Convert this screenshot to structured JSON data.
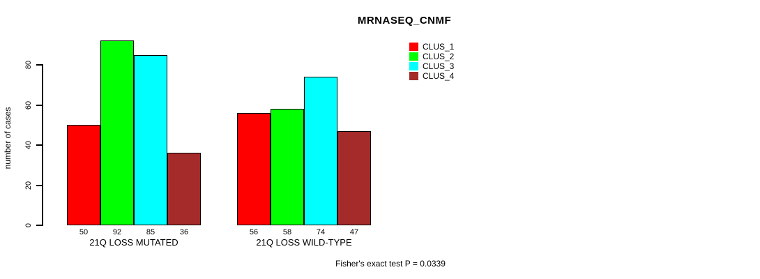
{
  "title": "MRNASEQ_CNMF",
  "chart_data": {
    "type": "bar",
    "title": "MRNASEQ_CNMF",
    "xlabel": "",
    "ylabel": "number of cases",
    "ylim": [
      0,
      92
    ],
    "yticks": [
      0,
      20,
      40,
      60,
      80
    ],
    "grid": false,
    "legend_position": "top-right",
    "categories": [
      "21Q LOSS MUTATED",
      "21Q LOSS WILD-TYPE"
    ],
    "series": [
      {
        "name": "CLUS_1",
        "color": "#ff0000",
        "values": [
          50,
          56
        ]
      },
      {
        "name": "CLUS_2",
        "color": "#00ff00",
        "values": [
          92,
          58
        ]
      },
      {
        "name": "CLUS_3",
        "color": "#00ffff",
        "values": [
          85,
          74
        ]
      },
      {
        "name": "CLUS_4",
        "color": "#a52a2a",
        "values": [
          36,
          47
        ]
      }
    ],
    "bar_value_labels": [
      [
        50,
        92,
        85,
        36
      ],
      [
        56,
        58,
        74,
        47
      ]
    ],
    "annotation": "Fisher's exact test P = 0.0339"
  },
  "legend": {
    "items": [
      {
        "label": "CLUS_1",
        "color": "#ff0000"
      },
      {
        "label": "CLUS_2",
        "color": "#00ff00"
      },
      {
        "label": "CLUS_3",
        "color": "#00ffff"
      },
      {
        "label": "CLUS_4",
        "color": "#a52a2a"
      }
    ]
  },
  "footer": {
    "fisher_text": "Fisher's exact test P = 0.0339"
  }
}
